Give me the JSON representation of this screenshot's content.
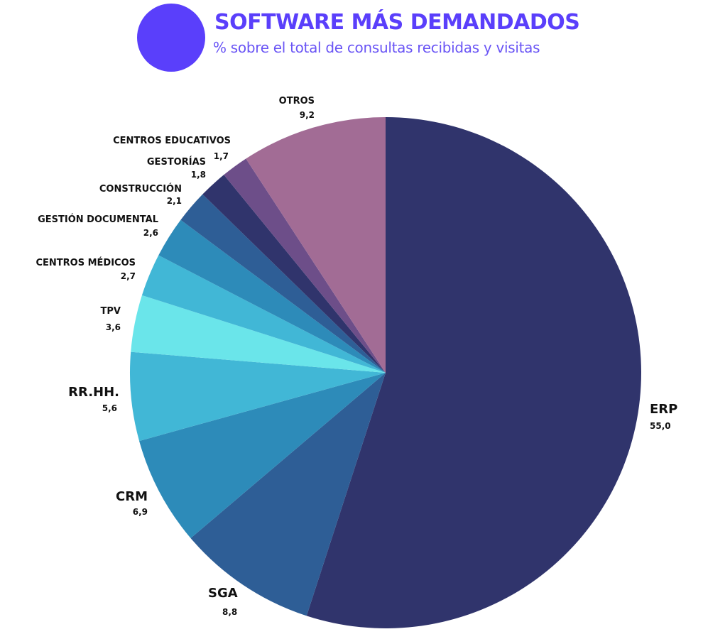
{
  "header": {
    "title": "SOFTWARE MÁS DEMANDADOS",
    "subtitle": "% sobre el total de consultas recibidas y visitas",
    "accent_color": "#5a3ffb"
  },
  "chart_data": {
    "type": "pie",
    "title": "SOFTWARE MÁS DEMANDADOS",
    "subtitle": "% sobre el total de consultas recibidas y visitas",
    "start_angle": "12 o'clock",
    "direction": "clockwise",
    "slices": [
      {
        "label": "ERP",
        "value": 55.0,
        "value_label": "55,0",
        "color": "#30346c"
      },
      {
        "label": "SGA",
        "value": 8.8,
        "value_label": "8,8",
        "color": "#2e5e96"
      },
      {
        "label": "CRM",
        "value": 6.9,
        "value_label": "6,9",
        "color": "#2d8bb9"
      },
      {
        "label": "RR.HH.",
        "value": 5.6,
        "value_label": "5,6",
        "color": "#41b7d6"
      },
      {
        "label": "TPV",
        "value": 3.6,
        "value_label": "3,6",
        "color": "#6ae5ea"
      },
      {
        "label": "CENTROS MÉDICOS",
        "value": 2.7,
        "value_label": "2,7",
        "color": "#41b7d6"
      },
      {
        "label": "GESTIÓN DOCUMENTAL",
        "value": 2.6,
        "value_label": "2,6",
        "color": "#2d8bb9"
      },
      {
        "label": "CONSTRUCCIÓN",
        "value": 2.1,
        "value_label": "2,1",
        "color": "#2e5e96"
      },
      {
        "label": "GESTORÍAS",
        "value": 1.8,
        "value_label": "1,8",
        "color": "#30346c"
      },
      {
        "label": "CENTROS EDUCATIVOS",
        "value": 1.7,
        "value_label": "1,7",
        "color": "#6d4e89"
      },
      {
        "label": "OTROS",
        "value": 9.2,
        "value_label": "9,2",
        "color": "#a26c95"
      }
    ]
  }
}
